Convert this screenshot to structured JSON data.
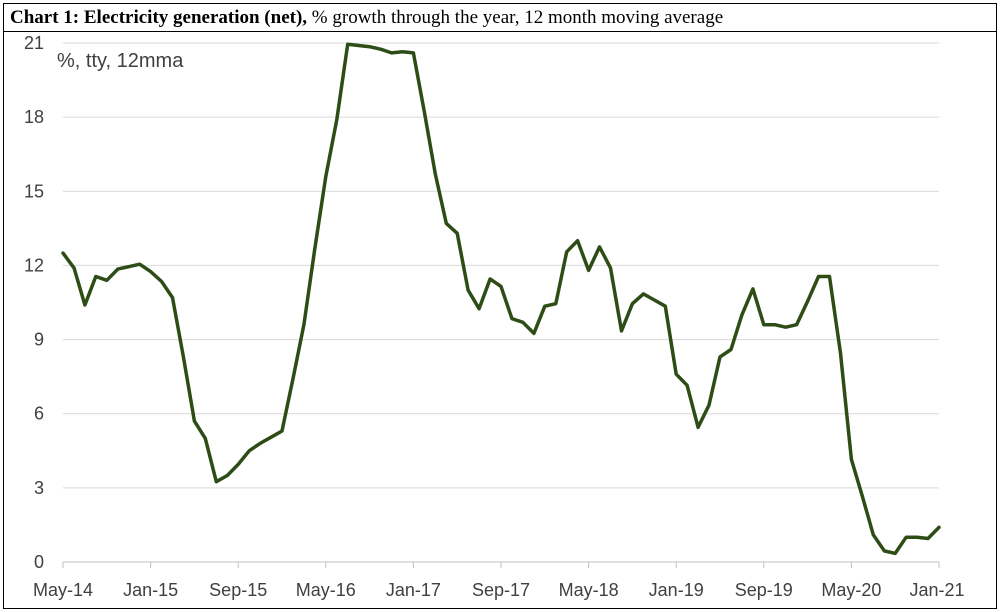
{
  "title": {
    "bold": "Chart 1: Electricity generation (net),",
    "rest": " % growth through the year, 12 month moving average"
  },
  "colors": {
    "line": "#2e4d16",
    "grid": "#d9d9d9",
    "axis": "#bfbfbf"
  },
  "chart_data": {
    "type": "line",
    "title": "Chart 1: Electricity generation (net), % growth through the year, 12 month moving average",
    "unit_label": "%, tty, 12mma",
    "ylim": [
      0,
      21
    ],
    "yticks": [
      0,
      3,
      6,
      9,
      12,
      15,
      18,
      21
    ],
    "grid": true,
    "xtick_labels": [
      "May-14",
      "Jan-15",
      "Sep-15",
      "May-16",
      "Jan-17",
      "Sep-17",
      "May-18",
      "Jan-19",
      "Sep-19",
      "May-20",
      "Jan-21"
    ],
    "series": [
      {
        "name": "",
        "start": "May-14",
        "frequency": "monthly",
        "values": [
          12.5,
          11.9,
          10.4,
          11.55,
          11.4,
          11.85,
          11.95,
          12.05,
          11.75,
          11.35,
          10.7,
          8.3,
          5.7,
          5.0,
          3.25,
          3.5,
          3.95,
          4.5,
          4.8,
          5.05,
          5.3,
          7.4,
          9.6,
          12.7,
          15.6,
          17.9,
          20.95,
          20.9,
          20.85,
          20.75,
          20.6,
          20.65,
          20.6,
          18.2,
          15.7,
          13.7,
          13.3,
          11.0,
          10.25,
          11.45,
          11.15,
          9.85,
          9.7,
          9.25,
          10.35,
          10.45,
          12.55,
          13.0,
          11.8,
          12.75,
          11.9,
          9.35,
          10.45,
          10.85,
          10.6,
          10.35,
          7.6,
          7.15,
          5.45,
          6.35,
          8.3,
          8.6,
          10.0,
          11.05,
          9.6,
          9.6,
          9.5,
          9.6,
          10.55,
          11.55,
          11.55,
          8.45,
          4.15,
          2.65,
          1.1,
          0.45,
          0.35,
          1.0,
          1.0,
          0.95,
          1.4
        ]
      }
    ]
  }
}
